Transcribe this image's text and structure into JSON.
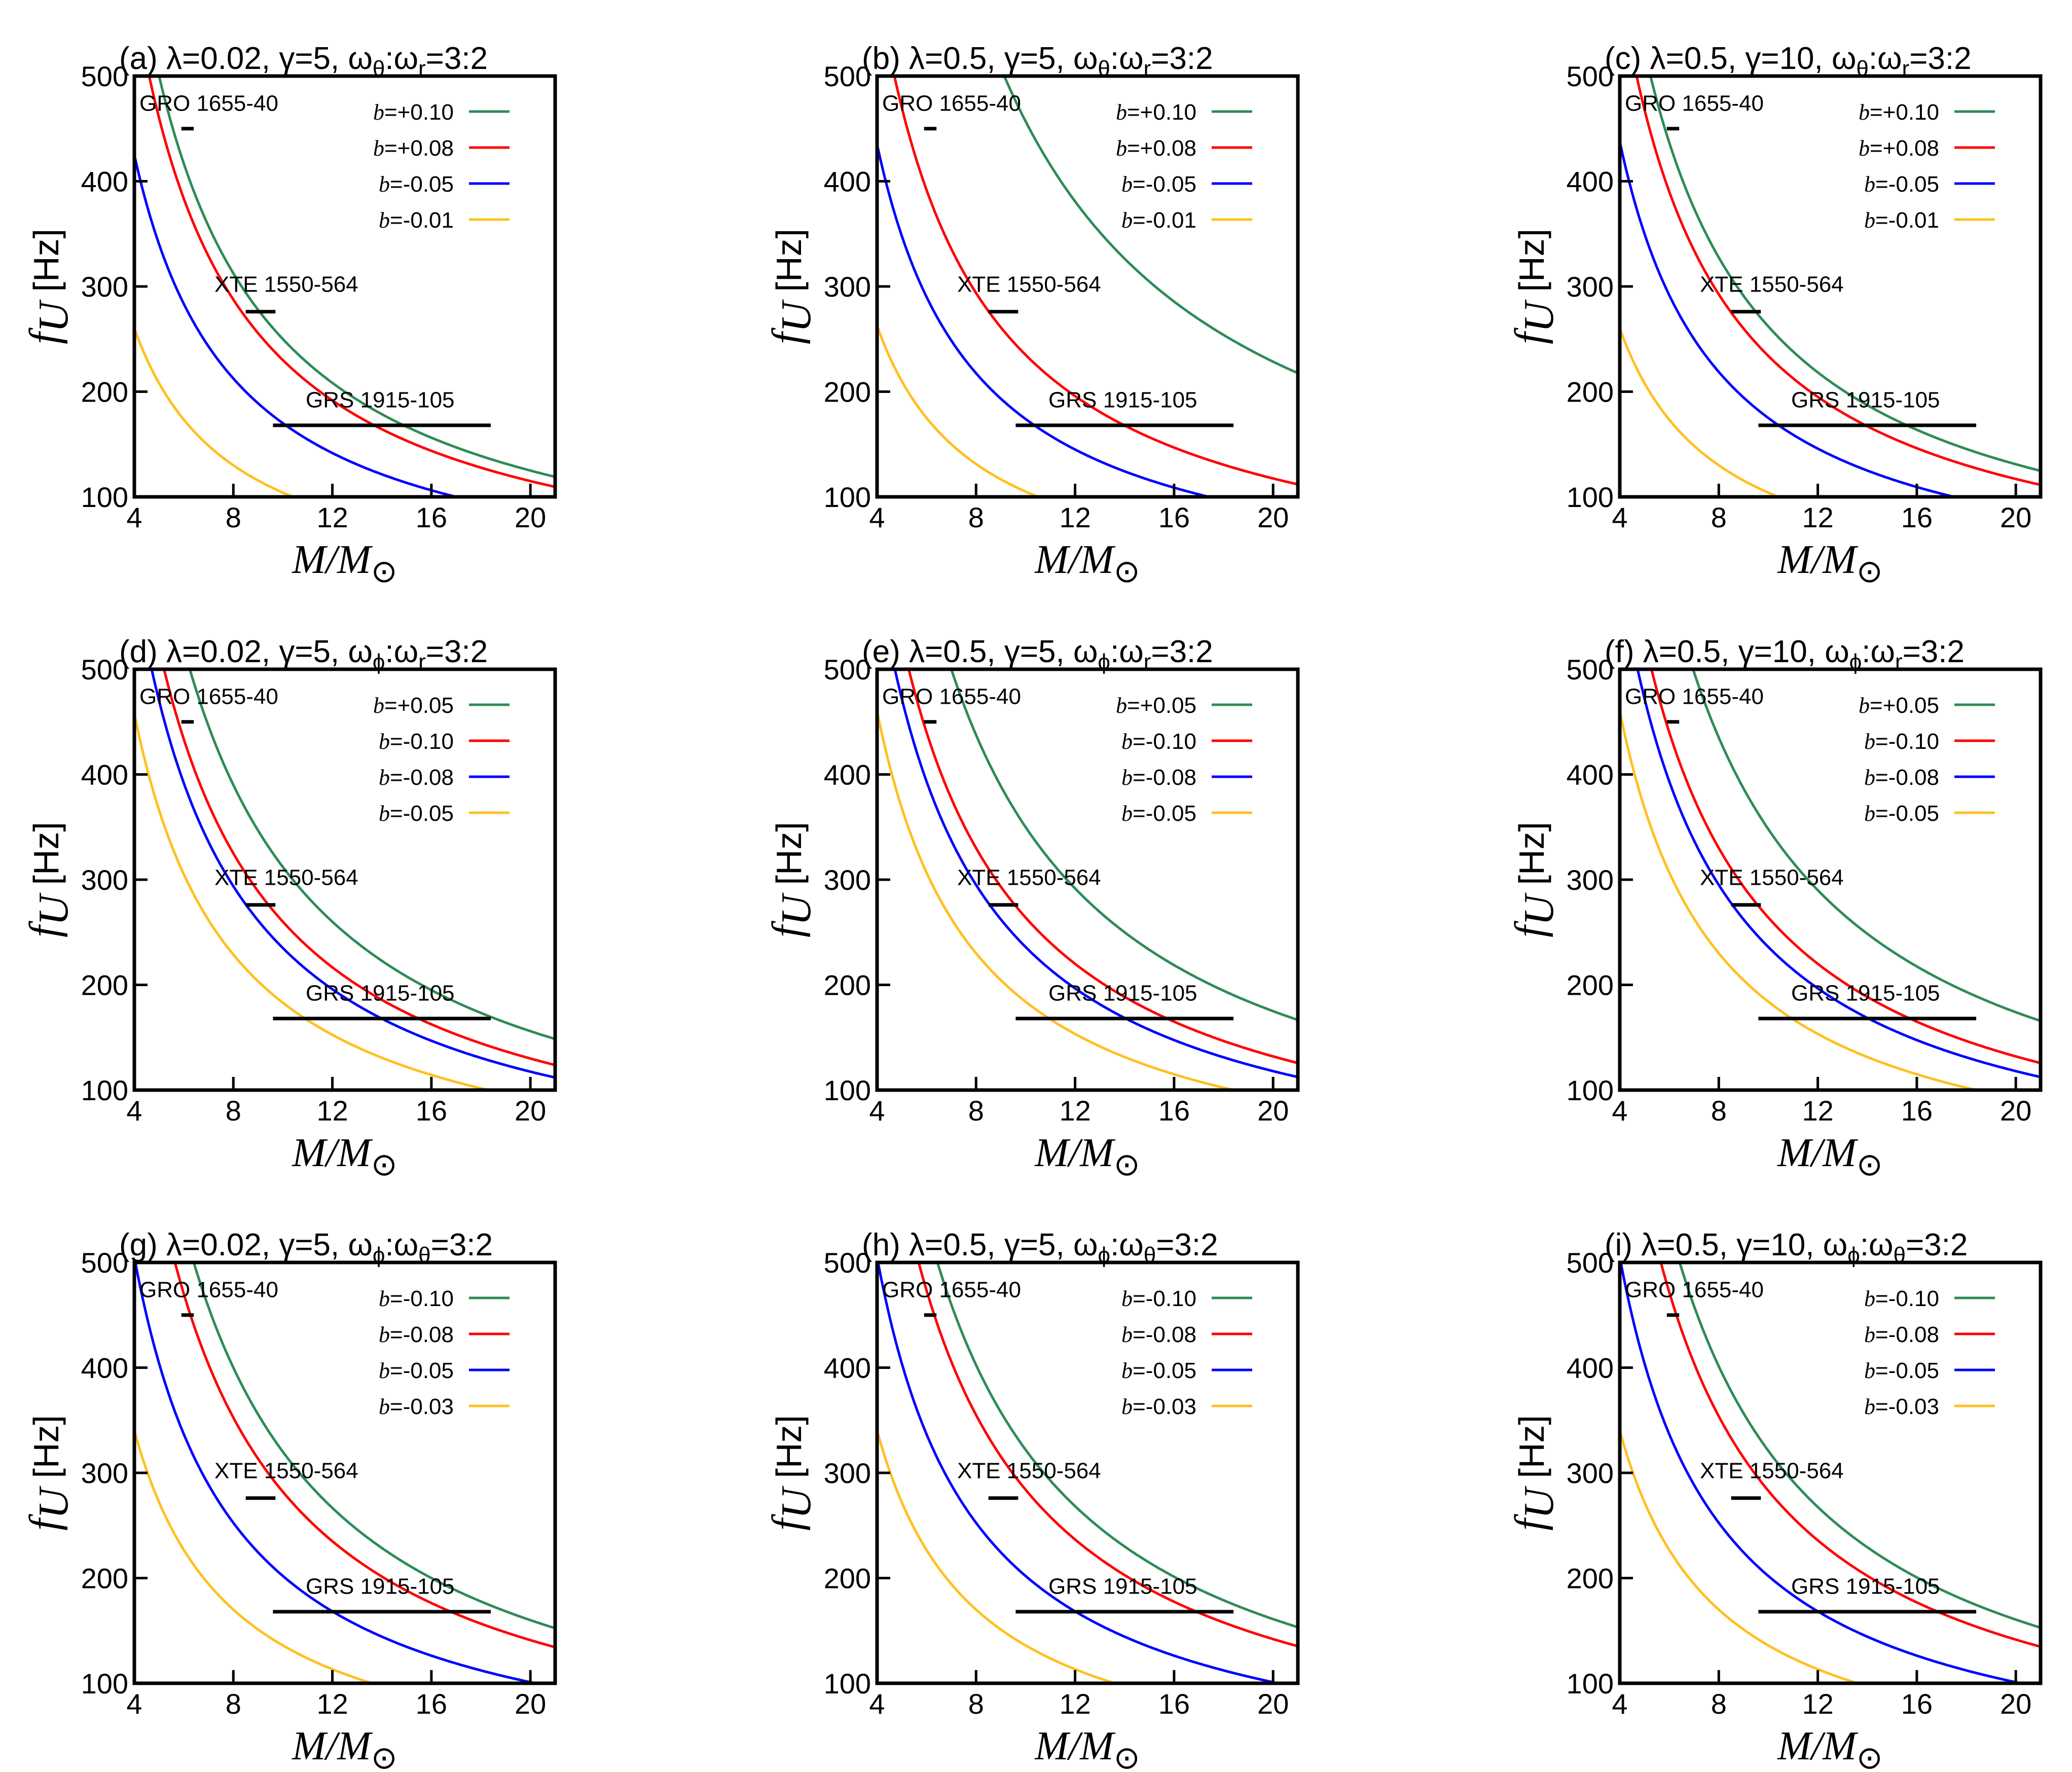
{
  "chart_data": [
    {
      "panel": "a",
      "type": "line",
      "title": {
        "prefix": "(a) λ=0.02, γ=5, ω",
        "s1": "θ",
        "mid": ":ω",
        "s2": "r",
        "suffix": "=3:2"
      },
      "xlim": [
        4,
        21
      ],
      "ylim": [
        100,
        500
      ],
      "xticks": [
        4,
        8,
        12,
        16,
        20
      ],
      "yticks": [
        100,
        200,
        300,
        400,
        500
      ],
      "xlabel": {
        "main": "M/M",
        "sub": "⊙"
      },
      "ylabel": {
        "main": "f",
        "sub": "U",
        "unit": "[Hz]"
      },
      "series": [
        {
          "name": "b=+0.10",
          "color": "#2e8b57",
          "k": 2500
        },
        {
          "name": "b=+0.08",
          "color": "#ff0000",
          "k": 2300
        },
        {
          "name": "b=-0.05",
          "color": "#0000ff",
          "k": 1700
        },
        {
          "name": "b=-0.01",
          "color": "#ffc020",
          "k": 1040
        }
      ]
    },
    {
      "panel": "b",
      "type": "line",
      "title": {
        "prefix": "(b) λ=0.5, γ=5, ω",
        "s1": "θ",
        "mid": ":ω",
        "s2": "r",
        "suffix": "=3:2"
      },
      "xlim": [
        4,
        21
      ],
      "ylim": [
        100,
        500
      ],
      "xticks": [
        4,
        8,
        12,
        16,
        20
      ],
      "yticks": [
        100,
        200,
        300,
        400,
        500
      ],
      "xlabel": {
        "main": "M/M",
        "sub": "⊙"
      },
      "ylabel": {
        "main": "f",
        "sub": "U",
        "unit": "[Hz]"
      },
      "series": [
        {
          "name": "b=+0.10",
          "color": "#2e8b57",
          "k": 4570
        },
        {
          "name": "b=+0.08",
          "color": "#ff0000",
          "k": 2350
        },
        {
          "name": "b=-0.05",
          "color": "#0000ff",
          "k": 1740
        },
        {
          "name": "b=-0.01",
          "color": "#ffc020",
          "k": 1050
        }
      ]
    },
    {
      "panel": "c",
      "type": "line",
      "title": {
        "prefix": "(c) λ=0.5, γ=10, ω",
        "s1": "θ",
        "mid": ":ω",
        "s2": "r",
        "suffix": "=3:2"
      },
      "xlim": [
        4,
        21
      ],
      "ylim": [
        100,
        500
      ],
      "xticks": [
        4,
        8,
        12,
        16,
        20
      ],
      "yticks": [
        100,
        200,
        300,
        400,
        500
      ],
      "xlabel": {
        "main": "M/M",
        "sub": "⊙"
      },
      "ylabel": {
        "main": "f",
        "sub": "U",
        "unit": "[Hz]"
      },
      "series": [
        {
          "name": "b=+0.10",
          "color": "#2e8b57",
          "k": 2620
        },
        {
          "name": "b=+0.08",
          "color": "#ff0000",
          "k": 2340
        },
        {
          "name": "b=-0.05",
          "color": "#0000ff",
          "k": 1750
        },
        {
          "name": "b=-0.01",
          "color": "#ffc020",
          "k": 1040
        }
      ]
    },
    {
      "panel": "d",
      "type": "line",
      "title": {
        "prefix": "(d) λ=0.02, γ=5, ω",
        "s1": "ϕ",
        "mid": ":ω",
        "s2": "r",
        "suffix": "=3:2"
      },
      "xlim": [
        4,
        21
      ],
      "ylim": [
        100,
        500
      ],
      "xticks": [
        4,
        8,
        12,
        16,
        20
      ],
      "yticks": [
        100,
        200,
        300,
        400,
        500
      ],
      "xlabel": {
        "main": "M/M",
        "sub": "⊙"
      },
      "ylabel": {
        "main": "f",
        "sub": "U",
        "unit": "[Hz]"
      },
      "series": [
        {
          "name": "b=+0.05",
          "color": "#2e8b57",
          "k": 3120
        },
        {
          "name": "b=-0.10",
          "color": "#ff0000",
          "k": 2600
        },
        {
          "name": "b=-0.08",
          "color": "#0000ff",
          "k": 2350
        },
        {
          "name": "b=-0.05",
          "color": "#ffc020",
          "k": 1830
        }
      ]
    },
    {
      "panel": "e",
      "type": "line",
      "title": {
        "prefix": "(e) λ=0.5, γ=5, ω",
        "s1": "ϕ",
        "mid": ":ω",
        "s2": "r",
        "suffix": "=3:2"
      },
      "xlim": [
        4,
        21
      ],
      "ylim": [
        100,
        500
      ],
      "xticks": [
        4,
        8,
        12,
        16,
        20
      ],
      "yticks": [
        100,
        200,
        300,
        400,
        500
      ],
      "xlabel": {
        "main": "M/M",
        "sub": "⊙"
      },
      "ylabel": {
        "main": "f",
        "sub": "U",
        "unit": "[Hz]"
      },
      "series": [
        {
          "name": "b=+0.05",
          "color": "#2e8b57",
          "k": 3500
        },
        {
          "name": "b=-0.10",
          "color": "#ff0000",
          "k": 2640
        },
        {
          "name": "b=-0.08",
          "color": "#0000ff",
          "k": 2360
        },
        {
          "name": "b=-0.05",
          "color": "#ffc020",
          "k": 1840
        }
      ]
    },
    {
      "panel": "f",
      "type": "line",
      "title": {
        "prefix": "(f) λ=0.5, γ=10, ω",
        "s1": "ϕ",
        "mid": ":ω",
        "s2": "r",
        "suffix": "=3:2"
      },
      "xlim": [
        4,
        21
      ],
      "ylim": [
        100,
        500
      ],
      "xticks": [
        4,
        8,
        12,
        16,
        20
      ],
      "yticks": [
        100,
        200,
        300,
        400,
        500
      ],
      "xlabel": {
        "main": "M/M",
        "sub": "⊙"
      },
      "ylabel": {
        "main": "f",
        "sub": "U",
        "unit": "[Hz]"
      },
      "series": [
        {
          "name": "b=+0.05",
          "color": "#2e8b57",
          "k": 3480
        },
        {
          "name": "b=-0.10",
          "color": "#ff0000",
          "k": 2640
        },
        {
          "name": "b=-0.08",
          "color": "#0000ff",
          "k": 2360
        },
        {
          "name": "b=-0.05",
          "color": "#ffc020",
          "k": 1840
        }
      ]
    },
    {
      "panel": "g",
      "type": "line",
      "title": {
        "prefix": "(g) λ=0.02, γ=5, ω",
        "s1": "ϕ",
        "mid": ":ω",
        "s2": "θ",
        "suffix": "=3:2"
      },
      "xlim": [
        4,
        21
      ],
      "ylim": [
        100,
        500
      ],
      "xticks": [
        4,
        8,
        12,
        16,
        20
      ],
      "yticks": [
        100,
        200,
        300,
        400,
        500
      ],
      "xlabel": {
        "main": "M/M",
        "sub": "⊙"
      },
      "ylabel": {
        "main": "f",
        "sub": "U",
        "unit": "[Hz]"
      },
      "series": [
        {
          "name": "b=-0.10",
          "color": "#2e8b57",
          "k": 3200
        },
        {
          "name": "b=-0.08",
          "color": "#ff0000",
          "k": 2820
        },
        {
          "name": "b=-0.05",
          "color": "#0000ff",
          "k": 2020
        },
        {
          "name": "b=-0.03",
          "color": "#ffc020",
          "k": 1360
        }
      ]
    },
    {
      "panel": "h",
      "type": "line",
      "title": {
        "prefix": "(h) λ=0.5, γ=5, ω",
        "s1": "ϕ",
        "mid": ":ω",
        "s2": "θ",
        "suffix": "=3:2"
      },
      "xlim": [
        4,
        21
      ],
      "ylim": [
        100,
        500
      ],
      "xticks": [
        4,
        8,
        12,
        16,
        20
      ],
      "yticks": [
        100,
        200,
        300,
        400,
        500
      ],
      "xlabel": {
        "main": "M/M",
        "sub": "⊙"
      },
      "ylabel": {
        "main": "f",
        "sub": "U",
        "unit": "[Hz]"
      },
      "series": [
        {
          "name": "b=-0.10",
          "color": "#2e8b57",
          "k": 3220
        },
        {
          "name": "b=-0.08",
          "color": "#ff0000",
          "k": 2840
        },
        {
          "name": "b=-0.05",
          "color": "#0000ff",
          "k": 2020
        },
        {
          "name": "b=-0.03",
          "color": "#ffc020",
          "k": 1360
        }
      ]
    },
    {
      "panel": "i",
      "type": "line",
      "title": {
        "prefix": "(i) λ=0.5, γ=10, ω",
        "s1": "ϕ",
        "mid": ":ω",
        "s2": "θ",
        "suffix": "=3:2"
      },
      "xlim": [
        4,
        21
      ],
      "ylim": [
        100,
        500
      ],
      "xticks": [
        4,
        8,
        12,
        16,
        20
      ],
      "yticks": [
        100,
        200,
        300,
        400,
        500
      ],
      "xlabel": {
        "main": "M/M",
        "sub": "⊙"
      },
      "ylabel": {
        "main": "f",
        "sub": "U",
        "unit": "[Hz]"
      },
      "series": [
        {
          "name": "b=-0.10",
          "color": "#2e8b57",
          "k": 3210
        },
        {
          "name": "b=-0.08",
          "color": "#ff0000",
          "k": 2830
        },
        {
          "name": "b=-0.05",
          "color": "#0000ff",
          "k": 2020
        },
        {
          "name": "b=-0.03",
          "color": "#ffc020",
          "k": 1360
        }
      ]
    }
  ],
  "sources": [
    {
      "name": "GRO 1655-40",
      "mass_range": [
        5.9,
        6.4
      ],
      "f": 450
    },
    {
      "name": "XTE 1550-564",
      "mass_range": [
        8.5,
        9.7
      ],
      "f": 276
    },
    {
      "name": "GRS 1915-105",
      "mass_range": [
        9.6,
        18.4
      ],
      "f": 168
    }
  ]
}
